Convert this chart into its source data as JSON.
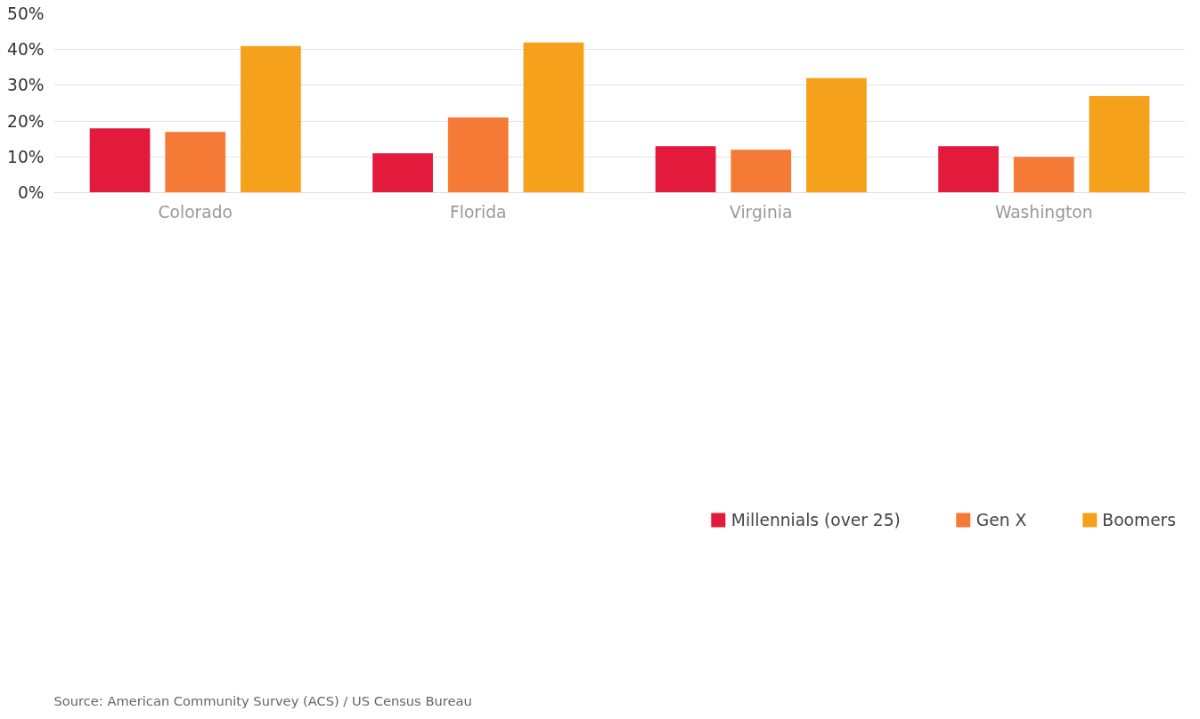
{
  "chart_data": {
    "type": "bar",
    "categories": [
      "Colorado",
      "Florida",
      "Virginia",
      "Washington"
    ],
    "series": [
      {
        "name": "Millennials (over 25)",
        "color": "#e31a3b",
        "values": [
          18,
          11,
          13,
          13
        ]
      },
      {
        "name": "Gen X",
        "color": "#f47a36",
        "values": [
          17,
          21,
          12,
          10
        ]
      },
      {
        "name": "Boomers",
        "color": "#f5a11c",
        "values": [
          41,
          42,
          32,
          27
        ]
      }
    ],
    "ylim": [
      0,
      50
    ],
    "yticks": [
      {
        "value": 0,
        "label": "0%"
      },
      {
        "value": 10,
        "label": "10%"
      },
      {
        "value": 20,
        "label": "20%"
      },
      {
        "value": 30,
        "label": "30%"
      },
      {
        "value": 40,
        "label": "40%"
      },
      {
        "value": 50,
        "label": "50%"
      }
    ],
    "grid": "y",
    "legend": "bottom right",
    "annotations": [
      "Source: American Community Survey (ACS) / US Census Bureau"
    ]
  }
}
